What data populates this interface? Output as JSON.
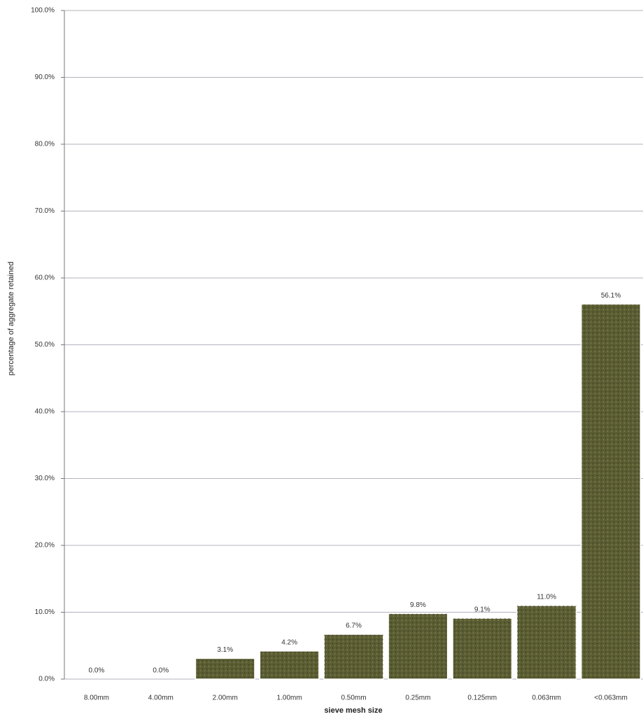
{
  "chart_data": {
    "type": "bar",
    "x_label": "sieve mesh size",
    "y_label": "percentage of aggregate retained",
    "categories": [
      "8.00mm",
      "4.00mm",
      "2.00mm",
      "1.00mm",
      "0.50mm",
      "0.25mm",
      "0.125mm",
      "0.063mm",
      "<0.063mm"
    ],
    "values": [
      0,
      0,
      3.1,
      4.2,
      6.7,
      9.8,
      9.1,
      11.0,
      56.1
    ],
    "value_labels": [
      "0.0%",
      "0.0%",
      "3.1%",
      "4.2%",
      "6.7%",
      "9.8%",
      "9.1%",
      "11.0%",
      "56.1%"
    ],
    "color": "#5b5d33",
    "ylim": [
      0,
      100
    ],
    "yticks": [
      {
        "value": 0,
        "label": "0.0%"
      },
      {
        "value": 10,
        "label": "10.0%"
      },
      {
        "value": 20,
        "label": "20.0%"
      },
      {
        "value": 30,
        "label": "30.0%"
      },
      {
        "value": 40,
        "label": "40.0%"
      },
      {
        "value": 50,
        "label": "50.0%"
      },
      {
        "value": 60,
        "label": "60.0%"
      },
      {
        "value": 70,
        "label": "70.0%"
      },
      {
        "value": 80,
        "label": "80.0%"
      },
      {
        "value": 90,
        "label": "90.0%"
      },
      {
        "value": 100,
        "label": "100.0%"
      }
    ],
    "grid": true
  }
}
